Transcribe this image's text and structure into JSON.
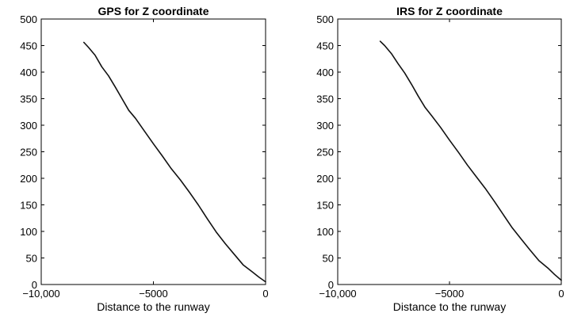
{
  "chart_data": [
    {
      "type": "line",
      "title": "GPS for Z coordinate",
      "xlabel": "Distance to the runway",
      "ylabel": "",
      "xlim": [
        -10000,
        0
      ],
      "ylim": [
        0,
        500
      ],
      "xticks": [
        -10000,
        -5000,
        0
      ],
      "xtick_labels": [
        "−10,000",
        "−5000",
        "0"
      ],
      "yticks": [
        0,
        50,
        100,
        150,
        200,
        250,
        300,
        350,
        400,
        450,
        500
      ],
      "ytick_labels": [
        "0",
        "50",
        "100",
        "150",
        "200",
        "250",
        "300",
        "350",
        "400",
        "450",
        "500"
      ],
      "grid": false,
      "series": [
        {
          "color": "#111111",
          "x": [
            -8100,
            -7900,
            -7600,
            -7300,
            -7000,
            -6700,
            -6400,
            -6100,
            -5800,
            -5400,
            -5000,
            -4600,
            -4200,
            -3800,
            -3400,
            -3000,
            -2600,
            -2200,
            -1800,
            -1400,
            -1000,
            -600,
            -300,
            0
          ],
          "y": [
            456,
            447,
            432,
            410,
            393,
            372,
            350,
            328,
            313,
            289,
            265,
            242,
            218,
            197,
            174,
            150,
            124,
            99,
            77,
            57,
            37,
            24,
            14,
            5
          ]
        }
      ]
    },
    {
      "type": "line",
      "title": "IRS for Z coordinate",
      "xlabel": "Distance to the runway",
      "ylabel": "",
      "xlim": [
        -10000,
        0
      ],
      "ylim": [
        0,
        500
      ],
      "xticks": [
        -10000,
        -5000,
        0
      ],
      "xtick_labels": [
        "−10,000",
        "−5000",
        "0"
      ],
      "yticks": [
        0,
        50,
        100,
        150,
        200,
        250,
        300,
        350,
        400,
        450,
        500
      ],
      "ytick_labels": [
        "0",
        "50",
        "100",
        "150",
        "200",
        "250",
        "300",
        "350",
        "400",
        "450",
        "500"
      ],
      "grid": false,
      "series": [
        {
          "color": "#111111",
          "x": [
            -8100,
            -7900,
            -7600,
            -7300,
            -7000,
            -6700,
            -6400,
            -6100,
            -5800,
            -5400,
            -5000,
            -4600,
            -4200,
            -3800,
            -3400,
            -3000,
            -2600,
            -2200,
            -1800,
            -1400,
            -1000,
            -600,
            -300,
            0
          ],
          "y": [
            458,
            450,
            435,
            416,
            398,
            377,
            355,
            334,
            318,
            296,
            272,
            249,
            225,
            203,
            181,
            157,
            132,
            107,
            86,
            65,
            45,
            31,
            19,
            8
          ]
        }
      ]
    }
  ]
}
